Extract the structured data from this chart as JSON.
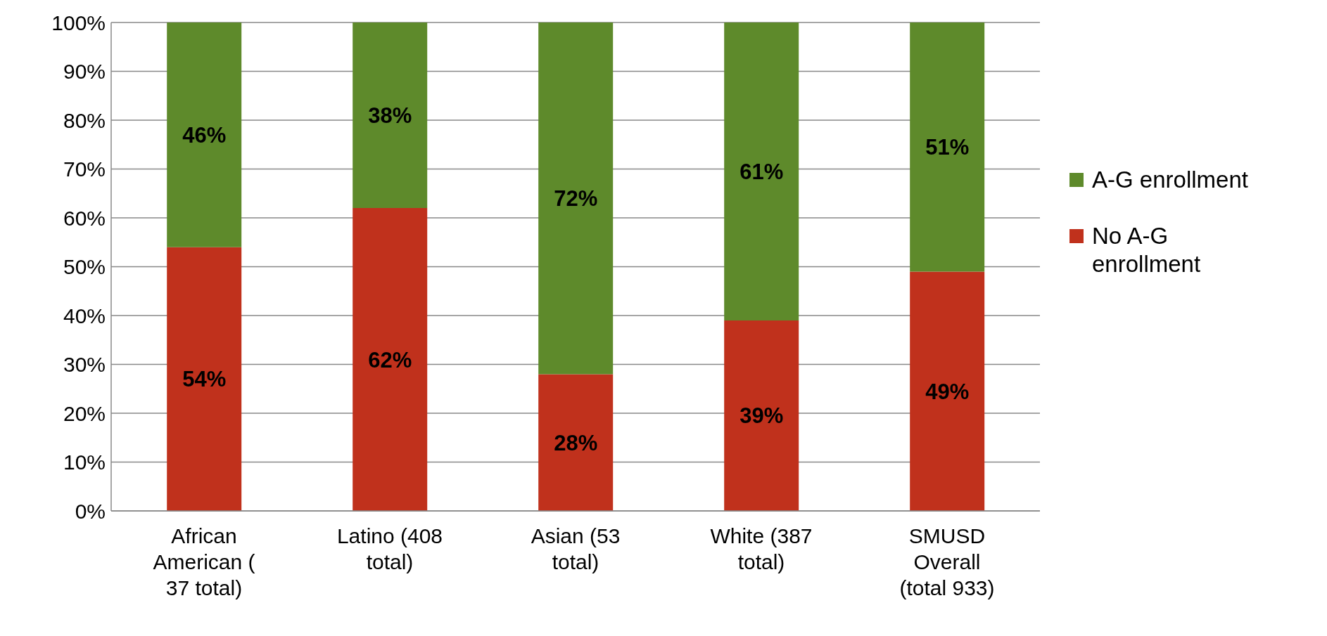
{
  "chart_data": {
    "type": "bar",
    "stacked": true,
    "categories": [
      "African American ( 37 total)",
      "Latino (408 total)",
      "Asian (53 total)",
      "White (387 total)",
      "SMUSD Overall (total 933)"
    ],
    "series": [
      {
        "name": "No A-G enrollment",
        "color": "#c0311c",
        "values": [
          54,
          62,
          28,
          39,
          49
        ],
        "value_labels": [
          "54%",
          "62%",
          "28%",
          "39%",
          "49%"
        ]
      },
      {
        "name": "A-G enrollment",
        "color": "#5e8a2b",
        "values": [
          46,
          38,
          72,
          61,
          51
        ],
        "value_labels": [
          "46%",
          "38%",
          "72%",
          "61%",
          "51%"
        ]
      }
    ],
    "ylim": [
      0,
      100
    ],
    "yticks": [
      {
        "value": 0,
        "label": "0%"
      },
      {
        "value": 10,
        "label": "10%"
      },
      {
        "value": 20,
        "label": "20%"
      },
      {
        "value": 30,
        "label": "30%"
      },
      {
        "value": 40,
        "label": "40%"
      },
      {
        "value": 50,
        "label": "50%"
      },
      {
        "value": 60,
        "label": "60%"
      },
      {
        "value": 70,
        "label": "70%"
      },
      {
        "value": 80,
        "label": "80%"
      },
      {
        "value": 90,
        "label": "90%"
      },
      {
        "value": 100,
        "label": "100%"
      }
    ],
    "grid": "y",
    "legend": "right"
  }
}
